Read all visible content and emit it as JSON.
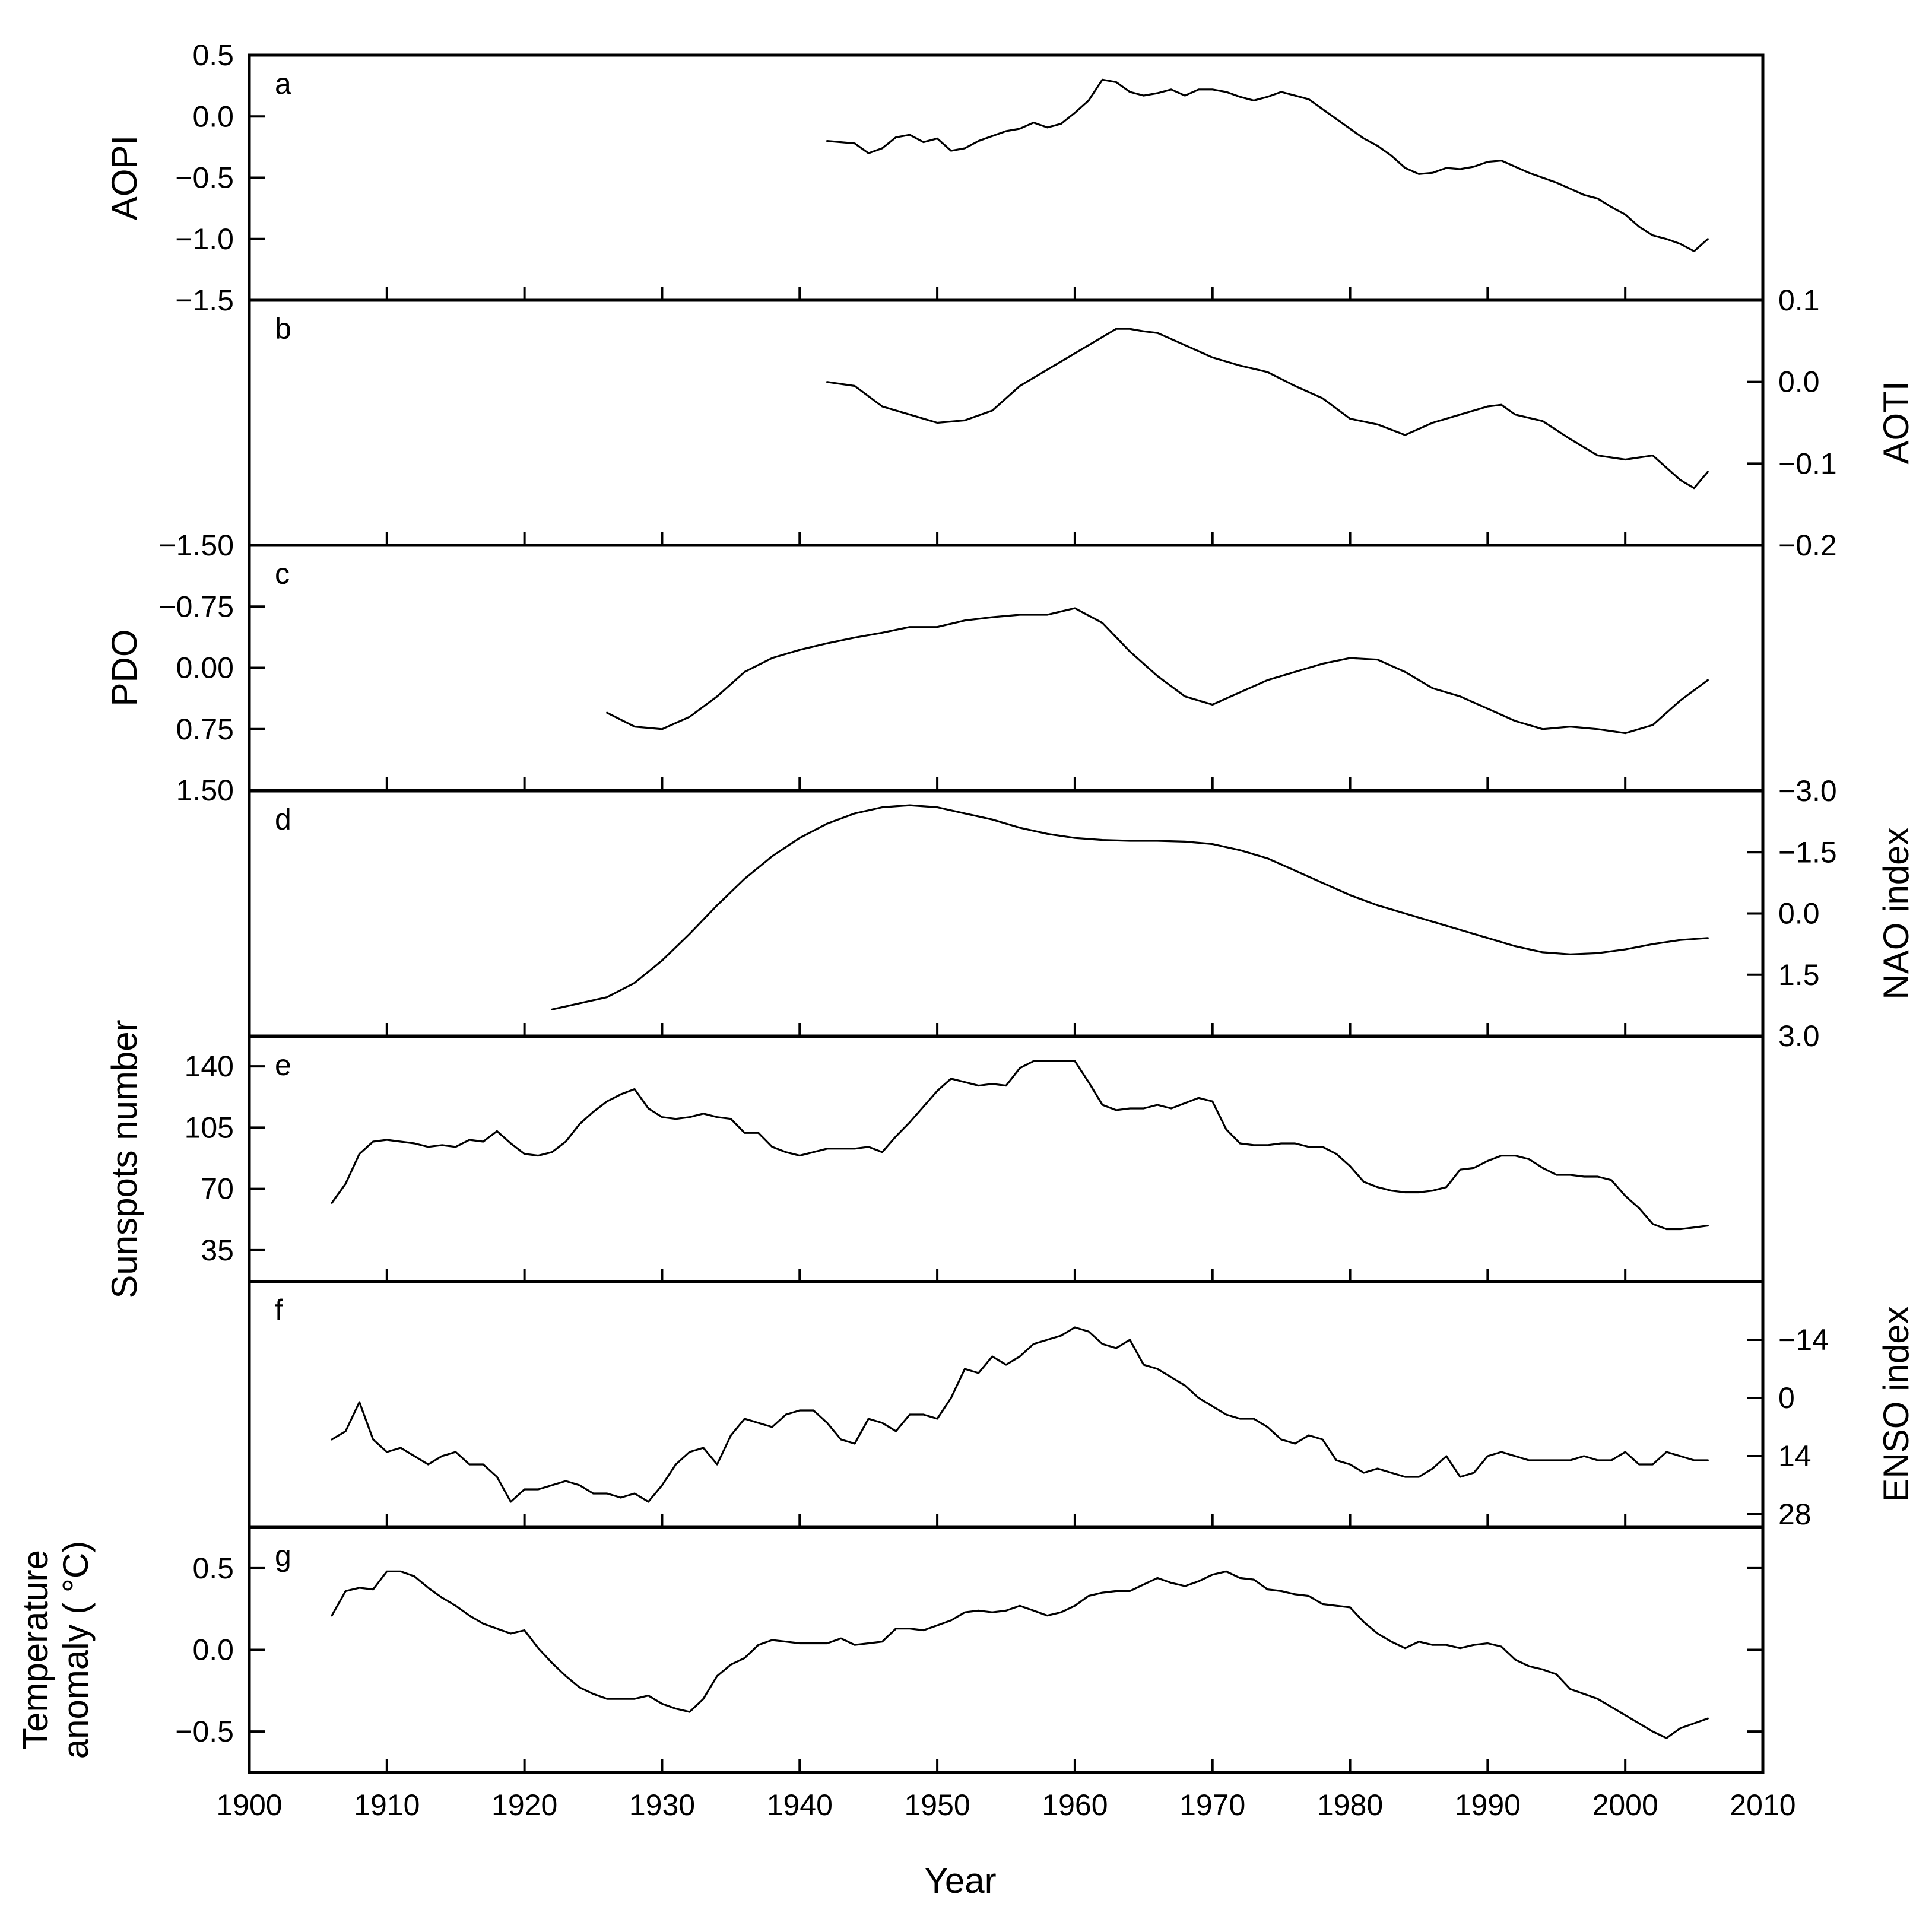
{
  "chart_data": {
    "type": "line",
    "xlabel": "Year",
    "xlim": [
      1900,
      2010
    ],
    "xticks": [
      1900,
      1910,
      1920,
      1930,
      1940,
      1950,
      1960,
      1970,
      1980,
      1990,
      2000,
      2010
    ],
    "xtick_labels": [
      "1900",
      "1910",
      "1920",
      "1930",
      "1940",
      "1950",
      "1960",
      "1970",
      "1980",
      "1990",
      "2000",
      "2010"
    ],
    "panels": [
      {
        "letter": "a",
        "ylabel": "AOPI",
        "ylabel_side": "left",
        "ylim": [
          -1.5,
          0.5
        ],
        "inverted": false,
        "ticks": [
          {
            "v": 0.5,
            "label": "0.5"
          },
          {
            "v": 0.0,
            "label": "0.0"
          },
          {
            "v": -0.5,
            "label": "−0.5"
          },
          {
            "v": -1.0,
            "label": "−1.0"
          },
          {
            "v": -1.5,
            "label": "−1.5"
          }
        ],
        "x": [
          1942,
          1944,
          1945,
          1946,
          1947,
          1948,
          1949,
          1950,
          1951,
          1952,
          1953,
          1954,
          1955,
          1956,
          1957,
          1958,
          1959,
          1960,
          1961,
          1962,
          1963,
          1964,
          1965,
          1966,
          1967,
          1968,
          1969,
          1970,
          1971,
          1972,
          1973,
          1974,
          1975,
          1976,
          1977,
          1978,
          1979,
          1980,
          1981,
          1982,
          1983,
          1984,
          1985,
          1986,
          1987,
          1988,
          1989,
          1990,
          1991,
          1992,
          1993,
          1994,
          1995,
          1996,
          1997,
          1998,
          1999,
          2000,
          2001,
          2002,
          2003,
          2004,
          2005,
          2006
        ],
        "values": [
          -0.2,
          -0.22,
          -0.3,
          -0.26,
          -0.17,
          -0.15,
          -0.21,
          -0.18,
          -0.28,
          -0.26,
          -0.2,
          -0.16,
          -0.12,
          -0.1,
          -0.05,
          -0.09,
          -0.06,
          0.03,
          0.13,
          0.3,
          0.28,
          0.2,
          0.17,
          0.19,
          0.22,
          0.17,
          0.22,
          0.22,
          0.2,
          0.16,
          0.13,
          0.16,
          0.2,
          0.17,
          0.14,
          0.06,
          -0.02,
          -0.1,
          -0.18,
          -0.24,
          -0.32,
          -0.42,
          -0.47,
          -0.46,
          -0.42,
          -0.43,
          -0.41,
          -0.37,
          -0.36,
          -0.41,
          -0.46,
          -0.5,
          -0.54,
          -0.59,
          -0.64,
          -0.67,
          -0.74,
          -0.8,
          -0.9,
          -0.97,
          -1.0,
          -1.04,
          -1.1,
          -1.0
        ]
      },
      {
        "letter": "b",
        "ylabel": "AOTI",
        "ylabel_side": "right",
        "ylim": [
          -0.2,
          0.1
        ],
        "inverted": false,
        "ticks": [
          {
            "v": 0.1,
            "label": "0.1"
          },
          {
            "v": 0.0,
            "label": "0.0"
          },
          {
            "v": -0.1,
            "label": "−0.1"
          },
          {
            "v": -0.2,
            "label": "−0.2"
          }
        ],
        "x": [
          1942,
          1944,
          1946,
          1948,
          1950,
          1952,
          1954,
          1956,
          1958,
          1960,
          1962,
          1963,
          1964,
          1965,
          1966,
          1968,
          1970,
          1972,
          1974,
          1976,
          1978,
          1980,
          1982,
          1984,
          1986,
          1988,
          1990,
          1991,
          1992,
          1994,
          1996,
          1998,
          2000,
          2002,
          2004,
          2005,
          2006
        ],
        "values": [
          0.0,
          -0.005,
          -0.03,
          -0.04,
          -0.05,
          -0.047,
          -0.035,
          -0.005,
          0.015,
          0.035,
          0.055,
          0.065,
          0.065,
          0.062,
          0.06,
          0.045,
          0.03,
          0.02,
          0.012,
          -0.005,
          -0.02,
          -0.045,
          -0.052,
          -0.065,
          -0.05,
          -0.04,
          -0.03,
          -0.028,
          -0.04,
          -0.048,
          -0.07,
          -0.09,
          -0.095,
          -0.09,
          -0.12,
          -0.13,
          -0.11
        ]
      },
      {
        "letter": "c",
        "ylabel": "PDO",
        "ylabel_side": "left",
        "ylim": [
          -1.5,
          1.5
        ],
        "inverted": true,
        "ticks": [
          {
            "v": -1.5,
            "label": "−1.50"
          },
          {
            "v": -0.75,
            "label": "−0.75"
          },
          {
            "v": 0.0,
            "label": "0.00"
          },
          {
            "v": 0.75,
            "label": "0.75"
          },
          {
            "v": 1.5,
            "label": "1.50"
          }
        ],
        "x": [
          1926,
          1928,
          1930,
          1932,
          1934,
          1936,
          1938,
          1940,
          1942,
          1944,
          1946,
          1948,
          1950,
          1952,
          1954,
          1956,
          1958,
          1960,
          1962,
          1964,
          1966,
          1968,
          1970,
          1972,
          1974,
          1976,
          1978,
          1980,
          1982,
          1984,
          1986,
          1988,
          1990,
          1992,
          1994,
          1996,
          1998,
          2000,
          2002,
          2004,
          2006
        ],
        "values": [
          0.55,
          0.72,
          0.75,
          0.6,
          0.35,
          0.05,
          -0.12,
          -0.22,
          -0.3,
          -0.37,
          -0.43,
          -0.5,
          -0.5,
          -0.58,
          -0.62,
          -0.65,
          -0.65,
          -0.73,
          -0.55,
          -0.2,
          0.1,
          0.35,
          0.45,
          0.3,
          0.15,
          0.05,
          -0.05,
          -0.12,
          -0.1,
          0.05,
          0.25,
          0.35,
          0.5,
          0.65,
          0.75,
          0.72,
          0.75,
          0.8,
          0.7,
          0.4,
          0.15
        ]
      },
      {
        "letter": "d",
        "ylabel": "NAO index",
        "ylabel_side": "right",
        "ylim": [
          -3.0,
          3.0
        ],
        "inverted": true,
        "ticks": [
          {
            "v": -3.0,
            "label": "−3.0"
          },
          {
            "v": -1.5,
            "label": "−1.5"
          },
          {
            "v": 0.0,
            "label": "0.0"
          },
          {
            "v": 1.5,
            "label": "1.5"
          },
          {
            "v": 3.0,
            "label": "3.0"
          }
        ],
        "x": [
          1922,
          1926,
          1928,
          1930,
          1932,
          1934,
          1936,
          1938,
          1940,
          1942,
          1944,
          1946,
          1948,
          1950,
          1952,
          1954,
          1956,
          1958,
          1960,
          1962,
          1964,
          1966,
          1968,
          1970,
          1972,
          1974,
          1976,
          1978,
          1980,
          1982,
          1984,
          1986,
          1988,
          1990,
          1992,
          1994,
          1996,
          1998,
          2000,
          2002,
          2004,
          2006
        ],
        "values": [
          2.35,
          2.05,
          1.7,
          1.15,
          0.5,
          -0.2,
          -0.85,
          -1.4,
          -1.85,
          -2.2,
          -2.45,
          -2.6,
          -2.65,
          -2.6,
          -2.45,
          -2.3,
          -2.1,
          -1.95,
          -1.85,
          -1.8,
          -1.78,
          -1.78,
          -1.76,
          -1.7,
          -1.55,
          -1.35,
          -1.05,
          -0.75,
          -0.45,
          -0.2,
          0.0,
          0.2,
          0.4,
          0.6,
          0.8,
          0.95,
          1.0,
          0.97,
          0.88,
          0.75,
          0.65,
          0.6
        ]
      },
      {
        "letter": "e",
        "ylabel": "Sunspots number",
        "ylabel_side": "left",
        "ylim": [
          17,
          157
        ],
        "inverted": false,
        "ticks": [
          {
            "v": 140,
            "label": "140"
          },
          {
            "v": 105,
            "label": "105"
          },
          {
            "v": 70,
            "label": "70"
          },
          {
            "v": 35,
            "label": "35"
          }
        ],
        "x": [
          1906,
          1907,
          1908,
          1909,
          1910,
          1911,
          1912,
          1913,
          1914,
          1915,
          1916,
          1917,
          1918,
          1919,
          1920,
          1921,
          1922,
          1923,
          1924,
          1925,
          1926,
          1927,
          1928,
          1929,
          1930,
          1931,
          1932,
          1933,
          1934,
          1935,
          1936,
          1937,
          1938,
          1939,
          1940,
          1941,
          1942,
          1943,
          1944,
          1945,
          1946,
          1947,
          1948,
          1949,
          1950,
          1951,
          1952,
          1953,
          1954,
          1955,
          1956,
          1957,
          1958,
          1959,
          1960,
          1961,
          1962,
          1963,
          1964,
          1965,
          1966,
          1967,
          1968,
          1969,
          1970,
          1971,
          1972,
          1973,
          1974,
          1975,
          1976,
          1977,
          1978,
          1979,
          1980,
          1981,
          1982,
          1983,
          1984,
          1985,
          1986,
          1987,
          1988,
          1989,
          1990,
          1991,
          1992,
          1993,
          1994,
          1995,
          1996,
          1997,
          1998,
          1999,
          2000,
          2001,
          2002,
          2003,
          2004,
          2005,
          2006
        ],
        "values": [
          62,
          73,
          90,
          97,
          98,
          97,
          96,
          94,
          95,
          94,
          98,
          97,
          103,
          96,
          90,
          89,
          91,
          97,
          107,
          114,
          120,
          124,
          127,
          116,
          111,
          110,
          111,
          113,
          111,
          110,
          102,
          102,
          94,
          91,
          89,
          91,
          93,
          93,
          93,
          94,
          91,
          100,
          108,
          117,
          126,
          133,
          131,
          129,
          130,
          129,
          139,
          143,
          143,
          143,
          143,
          131,
          118,
          115,
          116,
          116,
          118,
          116,
          119,
          122,
          120,
          104,
          96,
          95,
          95,
          96,
          96,
          94,
          94,
          90,
          83,
          74,
          71,
          69,
          68,
          68,
          69,
          71,
          81,
          82,
          86,
          89,
          89,
          87,
          82,
          78,
          78,
          77,
          77,
          75,
          66,
          59,
          50,
          47,
          47,
          48,
          49
        ]
      },
      {
        "letter": "f",
        "ylabel": "ENSO index",
        "ylabel_side": "right",
        "ylim": [
          -28,
          31
        ],
        "inverted": true,
        "ticks": [
          {
            "v": -14,
            "label": "−14"
          },
          {
            "v": 0,
            "label": "0"
          },
          {
            "v": 14,
            "label": "14"
          },
          {
            "v": 28,
            "label": "28"
          }
        ],
        "x": [
          1906,
          1907,
          1908,
          1909,
          1910,
          1911,
          1912,
          1913,
          1914,
          1915,
          1916,
          1917,
          1918,
          1919,
          1920,
          1921,
          1922,
          1923,
          1924,
          1925,
          1926,
          1927,
          1928,
          1929,
          1930,
          1931,
          1932,
          1933,
          1934,
          1935,
          1936,
          1937,
          1938,
          1939,
          1940,
          1941,
          1942,
          1943,
          1944,
          1945,
          1946,
          1947,
          1948,
          1949,
          1950,
          1951,
          1952,
          1953,
          1954,
          1955,
          1956,
          1957,
          1958,
          1959,
          1960,
          1961,
          1962,
          1963,
          1964,
          1965,
          1966,
          1967,
          1968,
          1969,
          1970,
          1971,
          1972,
          1973,
          1974,
          1975,
          1976,
          1977,
          1978,
          1979,
          1980,
          1981,
          1982,
          1983,
          1984,
          1985,
          1986,
          1987,
          1988,
          1989,
          1990,
          1991,
          1992,
          1993,
          1994,
          1995,
          1996,
          1997,
          1998,
          1999,
          2000,
          2001,
          2002,
          2003,
          2004,
          2005,
          2006
        ],
        "values": [
          10,
          8,
          1,
          10,
          13,
          12,
          14,
          16,
          14,
          13,
          16,
          16,
          19,
          25,
          22,
          22,
          21,
          20,
          21,
          23,
          23,
          24,
          23,
          25,
          21,
          16,
          13,
          12,
          16,
          9,
          5,
          6,
          7,
          4,
          3,
          3,
          6,
          10,
          11,
          5,
          6,
          8,
          4,
          4,
          5,
          0,
          -7,
          -6,
          -10,
          -8,
          -10,
          -13,
          -14,
          -15,
          -17,
          -16,
          -13,
          -12,
          -14,
          -8,
          -7,
          -5,
          -3,
          0,
          2,
          4,
          5,
          5,
          7,
          10,
          11,
          9,
          10,
          15,
          16,
          18,
          17,
          18,
          19,
          19,
          17,
          14,
          19,
          18,
          14,
          13,
          14,
          15,
          15,
          15,
          15,
          14,
          15,
          15,
          13,
          16,
          16,
          13,
          14,
          15,
          15
        ]
      },
      {
        "letter": "g",
        "ylabel": [
          "Temperature",
          "anomaly ( °C)"
        ],
        "ylabel_side": "left",
        "ylim": [
          -0.75,
          0.75
        ],
        "inverted": false,
        "ticks": [
          {
            "v": 0.5,
            "label": "0.5"
          },
          {
            "v": 0.0,
            "label": "0.0"
          },
          {
            "v": -0.5,
            "label": "−0.5"
          }
        ],
        "x": [
          1906,
          1907,
          1908,
          1909,
          1910,
          1911,
          1912,
          1913,
          1914,
          1915,
          1916,
          1917,
          1918,
          1919,
          1920,
          1921,
          1922,
          1923,
          1924,
          1925,
          1926,
          1927,
          1928,
          1929,
          1930,
          1931,
          1932,
          1933,
          1934,
          1935,
          1936,
          1937,
          1938,
          1939,
          1940,
          1941,
          1942,
          1943,
          1944,
          1945,
          1946,
          1947,
          1948,
          1949,
          1950,
          1951,
          1952,
          1953,
          1954,
          1955,
          1956,
          1957,
          1958,
          1959,
          1960,
          1961,
          1962,
          1963,
          1964,
          1965,
          1966,
          1967,
          1968,
          1969,
          1970,
          1971,
          1972,
          1973,
          1974,
          1975,
          1976,
          1977,
          1978,
          1979,
          1980,
          1981,
          1982,
          1983,
          1984,
          1985,
          1986,
          1987,
          1988,
          1989,
          1990,
          1991,
          1992,
          1993,
          1994,
          1995,
          1996,
          1997,
          1998,
          1999,
          2000,
          2001,
          2002,
          2003,
          2004,
          2005,
          2006
        ],
        "values": [
          0.21,
          0.36,
          0.38,
          0.37,
          0.48,
          0.48,
          0.45,
          0.38,
          0.32,
          0.27,
          0.21,
          0.16,
          0.13,
          0.1,
          0.12,
          0.01,
          -0.08,
          -0.16,
          -0.23,
          -0.27,
          -0.3,
          -0.3,
          -0.3,
          -0.28,
          -0.33,
          -0.36,
          -0.38,
          -0.3,
          -0.16,
          -0.09,
          -0.05,
          0.03,
          0.06,
          0.05,
          0.04,
          0.04,
          0.04,
          0.07,
          0.03,
          0.04,
          0.05,
          0.13,
          0.13,
          0.12,
          0.15,
          0.18,
          0.23,
          0.24,
          0.23,
          0.24,
          0.27,
          0.24,
          0.21,
          0.23,
          0.27,
          0.33,
          0.35,
          0.36,
          0.36,
          0.4,
          0.44,
          0.41,
          0.39,
          0.42,
          0.46,
          0.48,
          0.44,
          0.43,
          0.37,
          0.36,
          0.34,
          0.33,
          0.28,
          0.27,
          0.26,
          0.17,
          0.1,
          0.05,
          0.01,
          0.05,
          0.03,
          0.03,
          0.01,
          0.03,
          0.04,
          0.02,
          -0.06,
          -0.1,
          -0.12,
          -0.15,
          -0.24,
          -0.27,
          -0.3,
          -0.35,
          -0.4,
          -0.45,
          -0.5,
          -0.54,
          -0.48,
          -0.45,
          -0.42
        ]
      }
    ]
  }
}
